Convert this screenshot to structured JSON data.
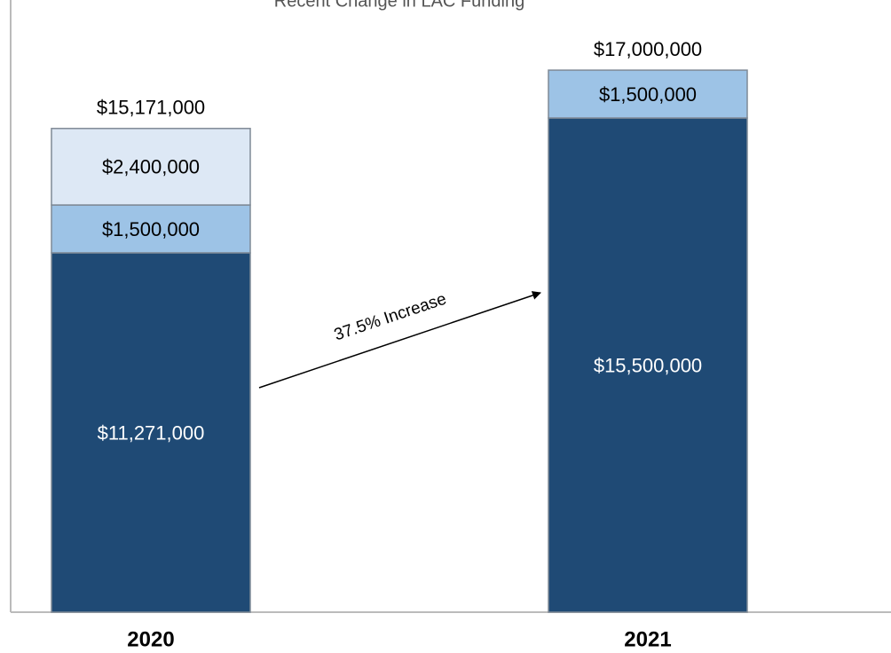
{
  "chart_data": {
    "type": "stacked_bar",
    "title": "Recent Change in LAC Funding",
    "categories": [
      "2020",
      "2021"
    ],
    "series": [
      {
        "color": "#1f4a75",
        "label_color": "#ffffff",
        "values": [
          11271000,
          15500000
        ],
        "value_labels": [
          "$11,271,000",
          "$15,500,000"
        ]
      },
      {
        "color": "#9dc3e6",
        "label_color": "#000000",
        "values": [
          1500000,
          1500000
        ],
        "value_labels": [
          "$1,500,000",
          "$1,500,000"
        ]
      },
      {
        "color": "#dde8f5",
        "label_color": "#000000",
        "values": [
          2400000,
          null
        ],
        "value_labels": [
          "$2,400,000",
          null
        ]
      }
    ],
    "totals": [
      15171000,
      17000000
    ],
    "total_labels": [
      "$15,171,000",
      "$17,000,000"
    ],
    "annotation": "37.5% Increase",
    "ylim": [
      0,
      19200000
    ]
  }
}
